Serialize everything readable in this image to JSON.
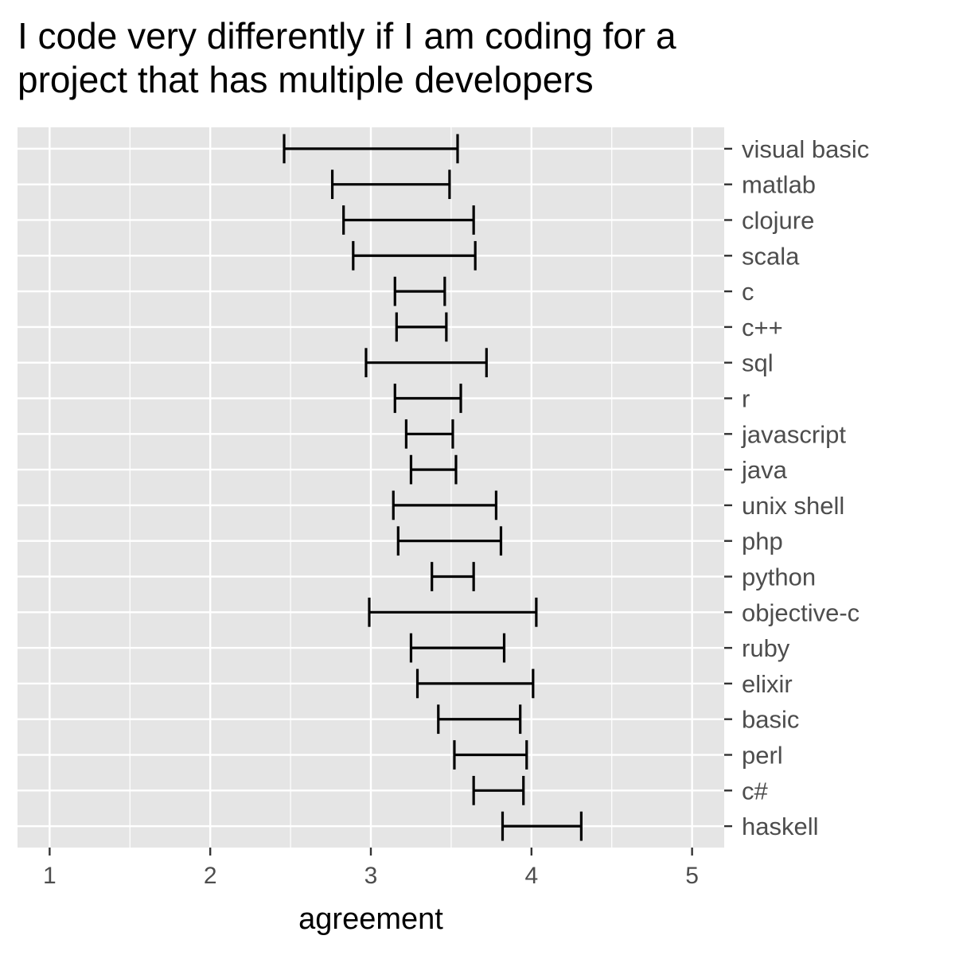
{
  "chart_data": {
    "type": "errorbar",
    "title_lines": [
      "I code very differently if I am coding for a",
      "project that has multiple developers"
    ],
    "xlabel": "agreement",
    "ylabel": "",
    "xlim": [
      0.8,
      5.2
    ],
    "x_ticks": [
      1,
      2,
      3,
      4,
      5
    ],
    "x_minor_ticks": [
      1.5,
      2.5,
      3.5,
      4.5
    ],
    "grid": true,
    "y_axis_position": "right",
    "categories": [
      "visual basic",
      "matlab",
      "clojure",
      "scala",
      "c",
      "c++",
      "sql",
      "r",
      "javascript",
      "java",
      "unix shell",
      "php",
      "python",
      "objective-c",
      "ruby",
      "elixir",
      "basic",
      "perl",
      "c#",
      "haskell"
    ],
    "lower": [
      2.46,
      2.76,
      2.83,
      2.89,
      3.15,
      3.16,
      2.97,
      3.15,
      3.22,
      3.25,
      3.14,
      3.17,
      3.38,
      2.99,
      3.25,
      3.29,
      3.42,
      3.52,
      3.64,
      3.82
    ],
    "upper": [
      3.54,
      3.49,
      3.64,
      3.65,
      3.46,
      3.47,
      3.72,
      3.56,
      3.51,
      3.53,
      3.78,
      3.81,
      3.64,
      4.03,
      3.83,
      4.01,
      3.93,
      3.97,
      3.95,
      4.31
    ],
    "colors": {
      "panel": "#e5e5e5",
      "grid": "#ffffff",
      "bar": "#000000",
      "tick": "#333333"
    }
  }
}
